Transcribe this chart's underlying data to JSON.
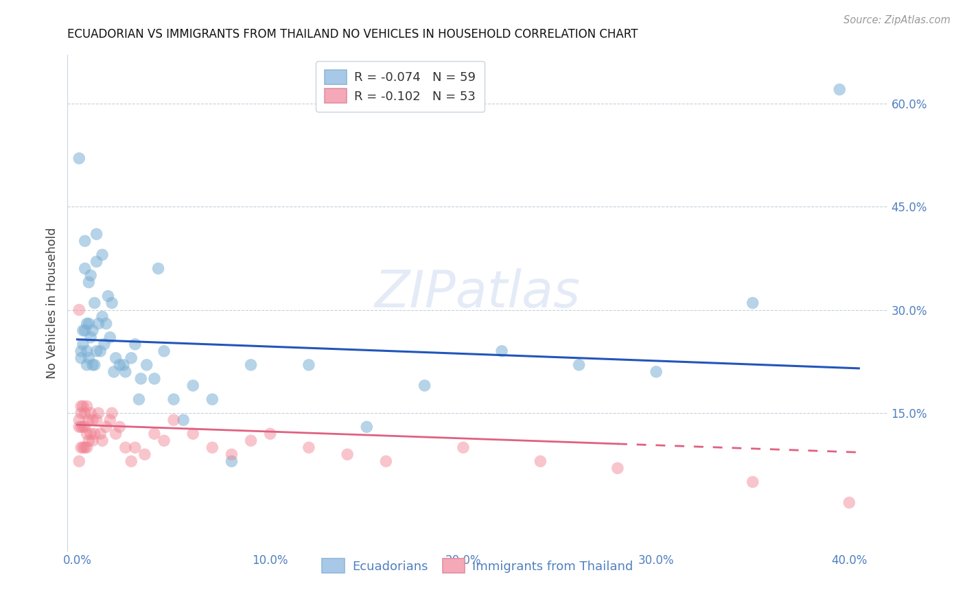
{
  "title": "ECUADORIAN VS IMMIGRANTS FROM THAILAND NO VEHICLES IN HOUSEHOLD CORRELATION CHART",
  "source": "Source: ZipAtlas.com",
  "ylabel": "No Vehicles in Household",
  "x_tick_labels": [
    "0.0%",
    "",
    "10.0%",
    "",
    "20.0%",
    "",
    "30.0%",
    "",
    "40.0%"
  ],
  "x_tick_values": [
    0.0,
    0.05,
    0.1,
    0.15,
    0.2,
    0.25,
    0.3,
    0.35,
    0.4
  ],
  "x_tick_labels_sparse": [
    "0.0%",
    "10.0%",
    "20.0%",
    "30.0%",
    "40.0%"
  ],
  "x_tick_values_sparse": [
    0.0,
    0.1,
    0.2,
    0.3,
    0.4
  ],
  "y_tick_labels_right": [
    "60.0%",
    "45.0%",
    "30.0%",
    "15.0%"
  ],
  "y_tick_values": [
    0.6,
    0.45,
    0.3,
    0.15
  ],
  "xlim": [
    -0.005,
    0.42
  ],
  "ylim": [
    -0.05,
    0.67
  ],
  "legend_label1": "Ecuadorians",
  "legend_label2": "Immigrants from Thailand",
  "blue_color": "#7bafd4",
  "pink_color": "#f08090",
  "blue_line_color": "#2255bb",
  "pink_line_color": "#e06080",
  "watermark": "ZIPatlas",
  "blue_R": -0.074,
  "blue_N": 59,
  "pink_R": -0.102,
  "pink_N": 53,
  "blue_x": [
    0.001,
    0.002,
    0.003,
    0.003,
    0.004,
    0.004,
    0.005,
    0.005,
    0.005,
    0.006,
    0.006,
    0.007,
    0.007,
    0.008,
    0.009,
    0.009,
    0.01,
    0.01,
    0.011,
    0.012,
    0.013,
    0.013,
    0.015,
    0.016,
    0.017,
    0.018,
    0.02,
    0.022,
    0.025,
    0.028,
    0.03,
    0.033,
    0.036,
    0.04,
    0.045,
    0.05,
    0.055,
    0.06,
    0.07,
    0.08,
    0.09,
    0.12,
    0.15,
    0.18,
    0.22,
    0.26,
    0.3,
    0.35,
    0.395,
    0.002,
    0.004,
    0.006,
    0.008,
    0.01,
    0.014,
    0.019,
    0.024,
    0.032,
    0.042
  ],
  "blue_y": [
    0.52,
    0.23,
    0.25,
    0.27,
    0.36,
    0.4,
    0.22,
    0.24,
    0.28,
    0.28,
    0.34,
    0.26,
    0.35,
    0.27,
    0.22,
    0.31,
    0.37,
    0.41,
    0.28,
    0.24,
    0.38,
    0.29,
    0.28,
    0.32,
    0.26,
    0.31,
    0.23,
    0.22,
    0.21,
    0.23,
    0.25,
    0.2,
    0.22,
    0.2,
    0.24,
    0.17,
    0.14,
    0.19,
    0.17,
    0.08,
    0.22,
    0.22,
    0.13,
    0.19,
    0.24,
    0.22,
    0.21,
    0.31,
    0.62,
    0.24,
    0.27,
    0.23,
    0.22,
    0.24,
    0.25,
    0.21,
    0.22,
    0.17,
    0.36
  ],
  "pink_x": [
    0.001,
    0.001,
    0.001,
    0.002,
    0.002,
    0.002,
    0.003,
    0.003,
    0.003,
    0.004,
    0.004,
    0.004,
    0.005,
    0.005,
    0.005,
    0.006,
    0.006,
    0.007,
    0.007,
    0.008,
    0.008,
    0.009,
    0.01,
    0.011,
    0.012,
    0.013,
    0.015,
    0.017,
    0.018,
    0.02,
    0.022,
    0.025,
    0.028,
    0.03,
    0.035,
    0.04,
    0.045,
    0.05,
    0.06,
    0.07,
    0.08,
    0.09,
    0.1,
    0.12,
    0.14,
    0.16,
    0.2,
    0.24,
    0.28,
    0.35,
    0.4,
    0.001,
    0.002
  ],
  "pink_y": [
    0.13,
    0.14,
    0.3,
    0.1,
    0.13,
    0.15,
    0.1,
    0.13,
    0.16,
    0.1,
    0.13,
    0.15,
    0.1,
    0.12,
    0.16,
    0.11,
    0.14,
    0.12,
    0.15,
    0.11,
    0.14,
    0.12,
    0.14,
    0.15,
    0.12,
    0.11,
    0.13,
    0.14,
    0.15,
    0.12,
    0.13,
    0.1,
    0.08,
    0.1,
    0.09,
    0.12,
    0.11,
    0.14,
    0.12,
    0.1,
    0.09,
    0.11,
    0.12,
    0.1,
    0.09,
    0.08,
    0.1,
    0.08,
    0.07,
    0.05,
    0.02,
    0.08,
    0.16
  ]
}
